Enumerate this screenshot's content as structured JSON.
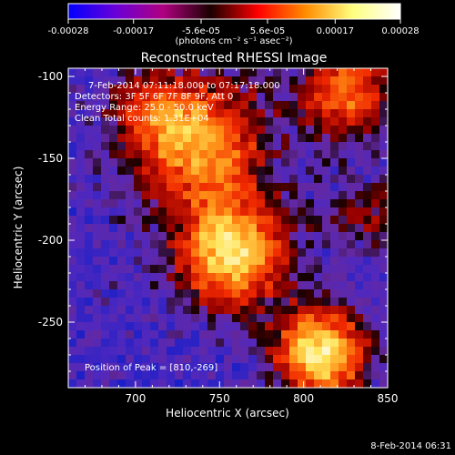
{
  "colorbar": {
    "tick_labels": [
      "-0.00028",
      "-0.00017",
      "-5.6e-05",
      "5.6e-05",
      "0.00017",
      "0.00028"
    ],
    "tick_values": [
      -0.00028,
      -0.00017,
      -5.6e-05,
      5.6e-05,
      0.00017,
      0.00028
    ],
    "range": [
      -0.00028,
      0.00028
    ],
    "unit_label": "(photons cm⁻² s⁻¹ asec⁻²)",
    "colors": [
      "#0000ff",
      "#6a00d8",
      "#b00080",
      "#1a0000",
      "#ff0000",
      "#ff8c00",
      "#ffff80",
      "#ffffff"
    ]
  },
  "chart_data": {
    "type": "heatmap",
    "title": "Reconstructed RHESSI Image",
    "xlabel": "Heliocentric X (arcsec)",
    "ylabel": "Heliocentric Y (arcsec)",
    "xlim": [
      660,
      850
    ],
    "ylim": [
      -290,
      -95
    ],
    "xticks": [
      700,
      750,
      800,
      850
    ],
    "yticks": [
      -100,
      -150,
      -200,
      -250
    ],
    "sources": [
      {
        "x": 810,
        "y": -269,
        "intensity": 1.0,
        "spread": 18
      },
      {
        "x": 757,
        "y": -207,
        "intensity": 0.95,
        "spread": 22
      },
      {
        "x": 738,
        "y": -140,
        "intensity": 0.75,
        "spread": 26
      },
      {
        "x": 825,
        "y": -110,
        "intensity": 0.65,
        "spread": 18
      },
      {
        "x": 710,
        "y": -120,
        "intensity": 0.35,
        "spread": 16
      },
      {
        "x": 835,
        "y": -185,
        "intensity": 0.3,
        "spread": 14
      }
    ],
    "annotations": [
      "7-Feb-2014 07:11:18.000 to 07:17:18.000",
      "Detectors: 3F 5F 6F 7F 8F 9F, Att 0",
      "Energy Range: 25.0 - 50.0 keV",
      "Clean     Total counts: 1.31E+04"
    ],
    "peak_label": "Position of Peak = [810,-269]",
    "peak": [
      810,
      -269
    ]
  },
  "footer": {
    "timestamp": "8-Feb-2014 06:31"
  }
}
